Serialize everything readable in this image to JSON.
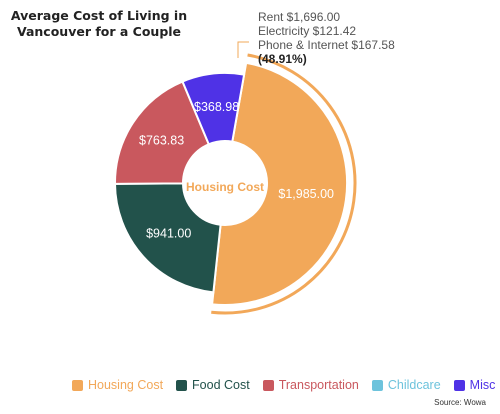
{
  "chart_data": {
    "type": "pie",
    "variant": "donut",
    "title_lines": [
      "Average Cost of Living in",
      "Vancouver for a Couple"
    ],
    "center_label": "Housing Cost",
    "categories": [
      "Housing Cost",
      "Food Cost",
      "Transportation",
      "Childcare",
      "Misc"
    ],
    "values": [
      1985.0,
      941.0,
      763.83,
      0,
      368.98
    ],
    "value_labels": [
      "$1,985.00",
      "$941.00",
      "$763.83",
      "",
      "$368.98"
    ],
    "colors": [
      "#F2A859",
      "#22524B",
      "#C9585E",
      "#6DC3DC",
      "#4F32E6"
    ],
    "highlighted": "Housing Cost",
    "annotation": {
      "lines": [
        "Rent $1,696.00",
        "Electricity $121.42",
        "Phone & Internet $167.58"
      ],
      "percent": "(48.91%)"
    },
    "legend_position": "bottom",
    "source": "Source: Wowa"
  }
}
